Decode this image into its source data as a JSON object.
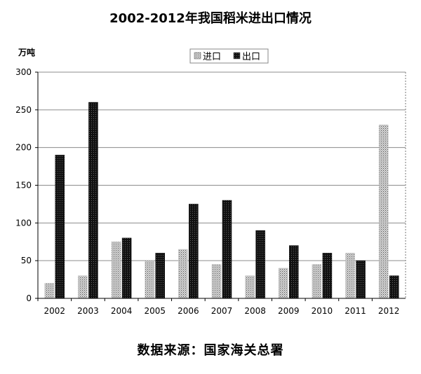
{
  "chart_data": {
    "type": "bar",
    "title": "2002-2012年我国稻米进出口情况",
    "ylabel": "万吨",
    "xlabel": "",
    "ylim": [
      0,
      300
    ],
    "yticks": [
      0,
      50,
      100,
      150,
      200,
      250,
      300
    ],
    "categories": [
      "2002",
      "2003",
      "2004",
      "2005",
      "2006",
      "2007",
      "2008",
      "2009",
      "2010",
      "2011",
      "2012"
    ],
    "series": [
      {
        "name": "进口",
        "values": [
          20,
          30,
          75,
          50,
          65,
          45,
          30,
          40,
          45,
          60,
          230
        ],
        "color": "#9a9a9a"
      },
      {
        "name": "出口",
        "values": [
          190,
          260,
          80,
          60,
          125,
          130,
          90,
          70,
          60,
          50,
          30
        ],
        "color": "#1a1a1a"
      }
    ],
    "grid": true,
    "legend": "top-center"
  },
  "source": "数据来源：国家海关总署"
}
